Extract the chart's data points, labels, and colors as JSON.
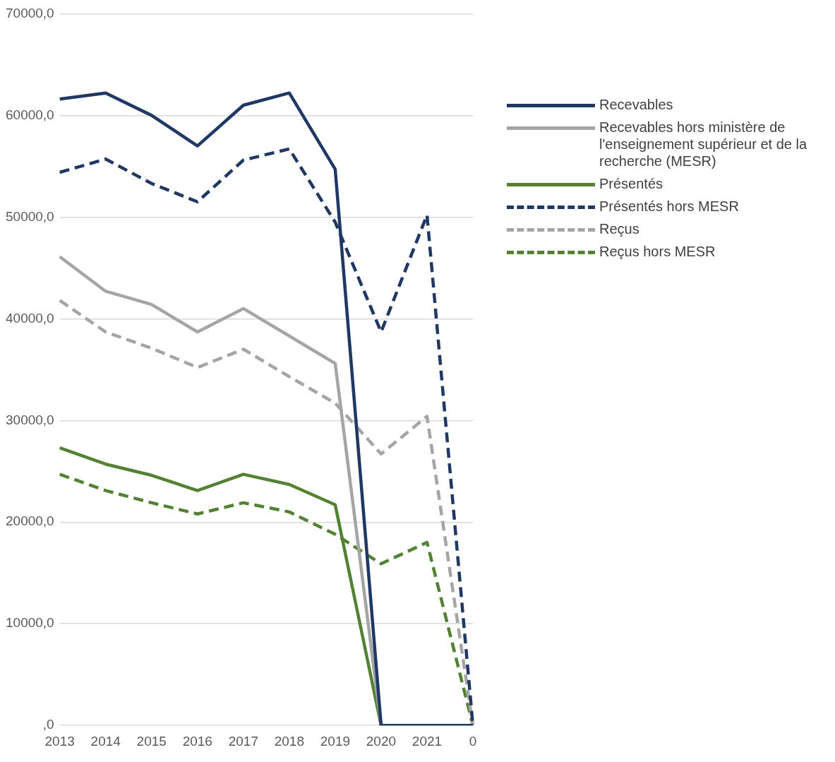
{
  "chart_data": {
    "type": "line",
    "categories": [
      "2013",
      "2014",
      "2015",
      "2016",
      "2017",
      "2018",
      "2019",
      "2020",
      "2021",
      "0"
    ],
    "ylim": [
      0,
      70000
    ],
    "yticks": [
      {
        "value": 0,
        "label": ",0"
      },
      {
        "value": 10000,
        "label": "10000,0"
      },
      {
        "value": 20000,
        "label": "20000,0"
      },
      {
        "value": 30000,
        "label": "30000,0"
      },
      {
        "value": 40000,
        "label": "40000,0"
      },
      {
        "value": 50000,
        "label": "50000,0"
      },
      {
        "value": 60000,
        "label": "60000,0"
      },
      {
        "value": 70000,
        "label": "70000,0"
      }
    ],
    "grid": "y",
    "legend": "right",
    "marker": "none",
    "series": [
      {
        "name": "Recevables",
        "color": "#203864",
        "line_style": "solid",
        "values": [
          61600,
          62200,
          60000,
          57000,
          61000,
          62200,
          54700,
          0,
          0,
          0
        ]
      },
      {
        "name": "Recevables hors ministère de l'enseignement supérieur et de la recherche (MESR)",
        "color": "#a5a5a5",
        "line_style": "solid",
        "values": [
          46100,
          42700,
          41400,
          38700,
          41000,
          38300,
          35600,
          0,
          0,
          0
        ]
      },
      {
        "name": "Présentés",
        "color": "#548235",
        "line_style": "solid",
        "values": [
          27300,
          25700,
          24600,
          23100,
          24700,
          23700,
          21700,
          0,
          0,
          0
        ]
      },
      {
        "name": "Présentés hors MESR",
        "color": "#203864",
        "line_style": "dashed",
        "values": [
          54400,
          55700,
          53300,
          51500,
          55600,
          56700,
          49500,
          38700,
          50200,
          0
        ]
      },
      {
        "name": "Reçus",
        "color": "#a5a5a5",
        "line_style": "dashed",
        "values": [
          41800,
          38700,
          37100,
          35200,
          37000,
          34300,
          31700,
          26700,
          30400,
          0
        ]
      },
      {
        "name": "Reçus hors MESR",
        "color": "#548235",
        "line_style": "dashed",
        "values": [
          24700,
          23100,
          21900,
          20800,
          21900,
          21000,
          18800,
          15900,
          18000,
          0
        ]
      }
    ]
  }
}
